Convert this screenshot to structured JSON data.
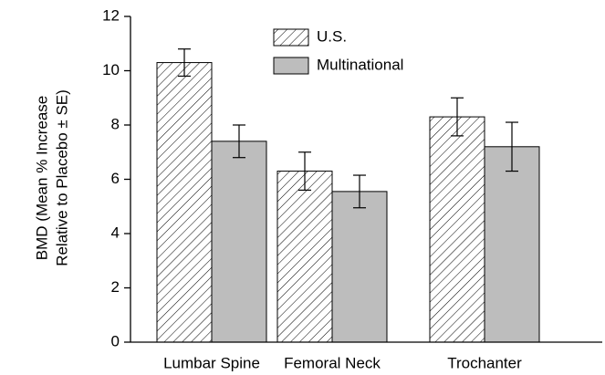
{
  "chart_data": {
    "type": "bar",
    "y_label": [
      "BMD (Mean % Increase",
      "Relative to Placebo ± SE)"
    ],
    "categories": [
      "Lumbar Spine",
      "Femoral Neck",
      "Trochanter"
    ],
    "series": [
      {
        "name": "U.S.",
        "color": "#ffffff",
        "pattern": "hatch",
        "values": [
          10.3,
          6.3,
          8.3
        ],
        "errors": [
          0.5,
          0.7,
          0.7
        ]
      },
      {
        "name": "Multinational",
        "color": "#bdbdbd",
        "values": [
          7.4,
          5.55,
          7.2
        ],
        "errors": [
          0.6,
          0.6,
          0.9
        ]
      }
    ],
    "ylim": [
      0,
      12
    ],
    "yticks": [
      0,
      2,
      4,
      6,
      8,
      10,
      12
    ],
    "grid": false,
    "legend": "top"
  }
}
